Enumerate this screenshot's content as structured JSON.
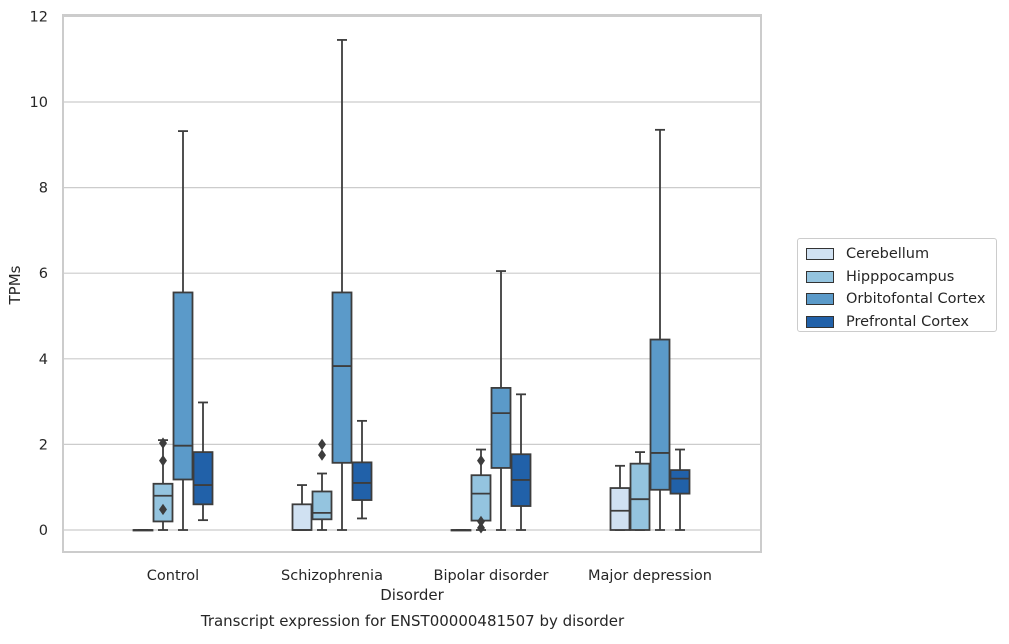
{
  "chart_data": {
    "type": "box",
    "title": "",
    "xlabel": "Disorder",
    "ylabel": "TPMs",
    "caption": "Transcript expression for ENST00000481507 by disorder",
    "ylim": [
      -0.55,
      12
    ],
    "yticks": [
      "0",
      "2",
      "4",
      "6",
      "8",
      "10",
      "12"
    ],
    "grid": "horizontal",
    "legend_position": "right",
    "categories": [
      "Control",
      "Schizophrenia",
      "Bipolar disorder",
      "Major depression"
    ],
    "series": [
      {
        "name": "Cerebellum",
        "color": "#d0e1f2",
        "boxes": [
          {
            "min": 0,
            "q1": 0,
            "median": 0,
            "q3": 0,
            "max": 0,
            "outliers": []
          },
          {
            "min": 0,
            "q1": 0,
            "median": 0,
            "q3": 0.6,
            "max": 1.05,
            "outliers": []
          },
          {
            "min": 0,
            "q1": 0,
            "median": 0,
            "q3": 0,
            "max": 0,
            "outliers": []
          },
          {
            "min": 0,
            "q1": 0,
            "median": 0.45,
            "q3": 0.98,
            "max": 1.5,
            "outliers": []
          }
        ]
      },
      {
        "name": "Hipppocampus",
        "color": "#94c4df",
        "boxes": [
          {
            "min": 0,
            "q1": 0.2,
            "median": 0.8,
            "q3": 1.08,
            "max": 2.1,
            "outliers": [
              0.48,
              1.62,
              2.03
            ]
          },
          {
            "min": 0,
            "q1": 0.25,
            "median": 0.4,
            "q3": 0.9,
            "max": 1.32,
            "outliers": [
              1.75,
              2.0
            ]
          },
          {
            "min": 0,
            "q1": 0.22,
            "median": 0.85,
            "q3": 1.28,
            "max": 1.88,
            "outliers": [
              0.05,
              0.2,
              1.62
            ]
          },
          {
            "min": 0,
            "q1": 0,
            "median": 0.72,
            "q3": 1.55,
            "max": 1.82,
            "outliers": []
          }
        ]
      },
      {
        "name": "Orbitofontal Cortex",
        "color": "#5b9ac9",
        "boxes": [
          {
            "min": 0,
            "q1": 1.18,
            "median": 1.97,
            "q3": 5.55,
            "max": 9.32,
            "outliers": []
          },
          {
            "min": 0,
            "q1": 1.57,
            "median": 3.83,
            "q3": 5.55,
            "max": 11.45,
            "outliers": []
          },
          {
            "min": 0,
            "q1": 1.45,
            "median": 2.73,
            "q3": 3.32,
            "max": 6.05,
            "outliers": []
          },
          {
            "min": 0,
            "q1": 0.94,
            "median": 1.8,
            "q3": 4.45,
            "max": 9.35,
            "outliers": []
          }
        ]
      },
      {
        "name": "Prefrontal Cortex",
        "color": "#2161a9",
        "boxes": [
          {
            "min": 0.23,
            "q1": 0.6,
            "median": 1.05,
            "q3": 1.82,
            "max": 2.98,
            "outliers": []
          },
          {
            "min": 0.27,
            "q1": 0.7,
            "median": 1.1,
            "q3": 1.58,
            "max": 2.55,
            "outliers": []
          },
          {
            "min": 0,
            "q1": 0.56,
            "median": 1.17,
            "q3": 1.77,
            "max": 3.17,
            "outliers": []
          },
          {
            "min": 0,
            "q1": 0.85,
            "median": 1.2,
            "q3": 1.4,
            "max": 1.88,
            "outliers": []
          }
        ]
      }
    ]
  }
}
